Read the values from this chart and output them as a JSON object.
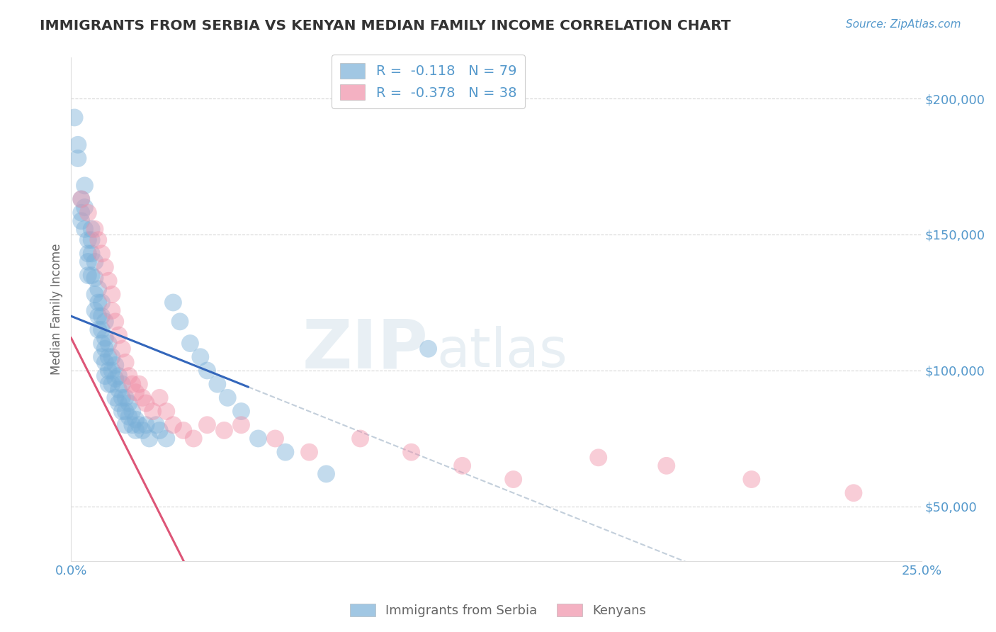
{
  "title": "IMMIGRANTS FROM SERBIA VS KENYAN MEDIAN FAMILY INCOME CORRELATION CHART",
  "source_text": "Source: ZipAtlas.com",
  "ylabel": "Median Family Income",
  "x_min": 0.0,
  "x_max": 0.25,
  "y_min": 30000,
  "y_max": 215000,
  "yticks": [
    50000,
    100000,
    150000,
    200000
  ],
  "ytick_labels": [
    "$50,000",
    "$100,000",
    "$150,000",
    "$200,000"
  ],
  "xticks": [
    0.0,
    0.05,
    0.1,
    0.15,
    0.2,
    0.25
  ],
  "xtick_labels": [
    "0.0%",
    "",
    "",
    "",
    "",
    "25.0%"
  ],
  "legend_entries": [
    {
      "label": "R =  -0.118   N = 79",
      "color": "#a8c8e8"
    },
    {
      "label": "R =  -0.378   N = 38",
      "color": "#f4a0b8"
    }
  ],
  "bottom_legend": [
    {
      "label": "Immigrants from Serbia",
      "color": "#a8c8e8"
    },
    {
      "label": "Kenyans",
      "color": "#f4a0b8"
    }
  ],
  "serbia_color": "#7ab0d8",
  "kenya_color": "#f090a8",
  "watermark_zip": "ZIP",
  "watermark_atlas": "atlas",
  "background_color": "#ffffff",
  "grid_color": "#cccccc",
  "title_color": "#333333",
  "axis_label_color": "#666666",
  "tick_color": "#5599cc",
  "serbia_line_color": "#3366bb",
  "kenya_line_color": "#dd5577",
  "serbia_line_intercept": 120000,
  "serbia_line_slope": -500000,
  "kenya_line_intercept": 112000,
  "kenya_line_slope": -2480000,
  "serbia_line_x_end": 0.052,
  "serbia_x": [
    0.001,
    0.002,
    0.002,
    0.003,
    0.003,
    0.003,
    0.004,
    0.004,
    0.004,
    0.005,
    0.005,
    0.005,
    0.005,
    0.006,
    0.006,
    0.006,
    0.006,
    0.007,
    0.007,
    0.007,
    0.007,
    0.008,
    0.008,
    0.008,
    0.008,
    0.009,
    0.009,
    0.009,
    0.009,
    0.009,
    0.01,
    0.01,
    0.01,
    0.01,
    0.01,
    0.011,
    0.011,
    0.011,
    0.011,
    0.012,
    0.012,
    0.012,
    0.013,
    0.013,
    0.013,
    0.014,
    0.014,
    0.014,
    0.015,
    0.015,
    0.015,
    0.016,
    0.016,
    0.016,
    0.017,
    0.017,
    0.018,
    0.018,
    0.019,
    0.019,
    0.02,
    0.021,
    0.022,
    0.023,
    0.025,
    0.026,
    0.028,
    0.03,
    0.032,
    0.035,
    0.038,
    0.04,
    0.043,
    0.046,
    0.05,
    0.055,
    0.063,
    0.075,
    0.105
  ],
  "serbia_y": [
    193000,
    183000,
    178000,
    163000,
    158000,
    155000,
    168000,
    160000,
    152000,
    148000,
    143000,
    140000,
    135000,
    152000,
    148000,
    143000,
    135000,
    140000,
    134000,
    128000,
    122000,
    130000,
    125000,
    120000,
    115000,
    125000,
    120000,
    115000,
    110000,
    105000,
    118000,
    112000,
    108000,
    103000,
    98000,
    110000,
    105000,
    100000,
    95000,
    105000,
    100000,
    95000,
    102000,
    97000,
    90000,
    98000,
    93000,
    88000,
    95000,
    90000,
    85000,
    90000,
    85000,
    80000,
    88000,
    83000,
    85000,
    80000,
    82000,
    78000,
    80000,
    78000,
    80000,
    75000,
    80000,
    78000,
    75000,
    125000,
    118000,
    110000,
    105000,
    100000,
    95000,
    90000,
    85000,
    75000,
    70000,
    62000,
    108000
  ],
  "kenya_x": [
    0.003,
    0.005,
    0.007,
    0.008,
    0.009,
    0.01,
    0.011,
    0.012,
    0.012,
    0.013,
    0.014,
    0.015,
    0.016,
    0.017,
    0.018,
    0.019,
    0.02,
    0.021,
    0.022,
    0.024,
    0.026,
    0.028,
    0.03,
    0.033,
    0.036,
    0.04,
    0.045,
    0.05,
    0.06,
    0.07,
    0.085,
    0.1,
    0.115,
    0.13,
    0.155,
    0.175,
    0.2,
    0.23
  ],
  "kenya_y": [
    163000,
    158000,
    152000,
    148000,
    143000,
    138000,
    133000,
    128000,
    122000,
    118000,
    113000,
    108000,
    103000,
    98000,
    95000,
    92000,
    95000,
    90000,
    88000,
    85000,
    90000,
    85000,
    80000,
    78000,
    75000,
    80000,
    78000,
    80000,
    75000,
    70000,
    75000,
    70000,
    65000,
    60000,
    68000,
    65000,
    60000,
    55000
  ]
}
